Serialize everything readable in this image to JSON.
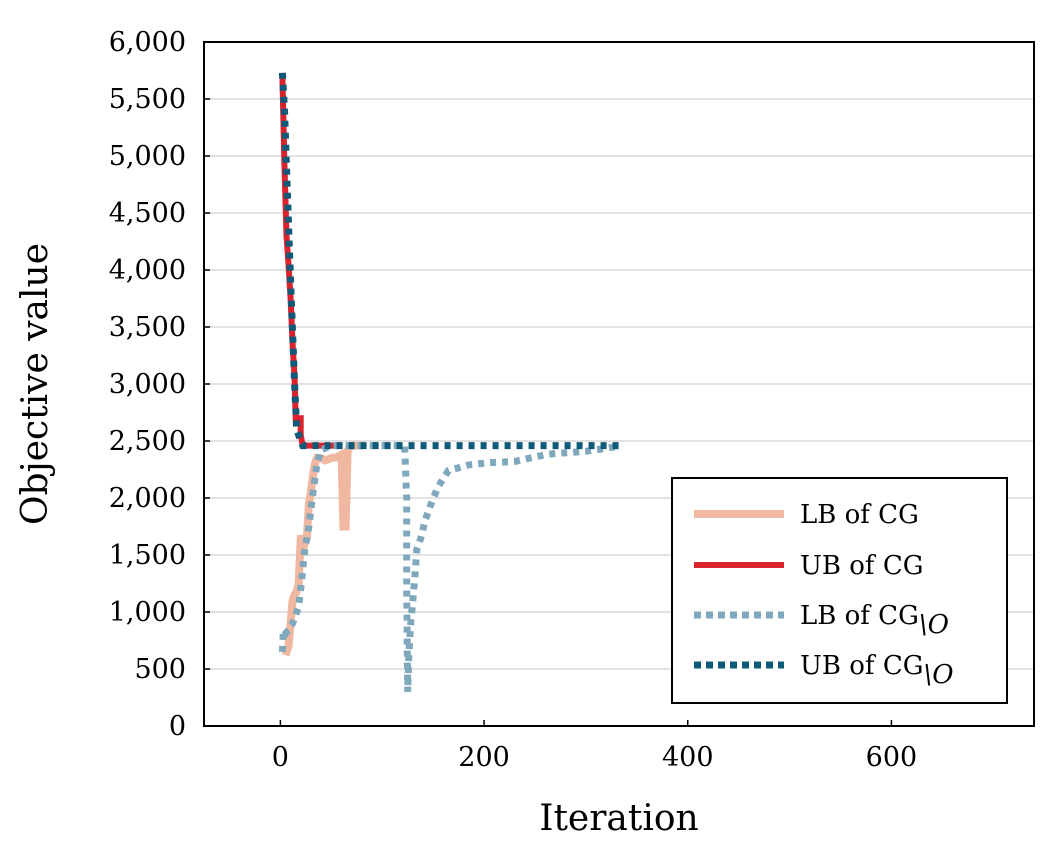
{
  "chart_data": {
    "type": "line",
    "xlabel": "Iteration",
    "ylabel": "Objective value",
    "xlim": [
      -75,
      740
    ],
    "ylim": [
      0,
      6000
    ],
    "xticks": [
      0,
      200,
      400,
      600
    ],
    "xtick_labels": [
      "0",
      "200",
      "400",
      "600"
    ],
    "yticks": [
      0,
      500,
      1000,
      1500,
      2000,
      2500,
      3000,
      3500,
      4000,
      4500,
      5000,
      5500,
      6000
    ],
    "ytick_labels": [
      "0",
      "500",
      "1,000",
      "1,500",
      "2,000",
      "2,500",
      "3,000",
      "3,500",
      "4,000",
      "4,500",
      "5,000",
      "5,500",
      "6,000"
    ],
    "grid": "horizontal",
    "legend_position": "bottom-right",
    "series": [
      {
        "name": "LB of CG",
        "legend_label": "LB of CG",
        "color": "#f0b8a0",
        "style": "solid-thick",
        "points": [
          [
            5,
            620
          ],
          [
            8,
            700
          ],
          [
            10,
            900
          ],
          [
            12,
            1100
          ],
          [
            14,
            1150
          ],
          [
            16,
            1180
          ],
          [
            18,
            1250
          ],
          [
            20,
            1640
          ],
          [
            22,
            1640
          ],
          [
            24,
            1600
          ],
          [
            26,
            1650
          ],
          [
            28,
            1950
          ],
          [
            30,
            2050
          ],
          [
            32,
            2200
          ],
          [
            34,
            2300
          ],
          [
            36,
            2350
          ],
          [
            40,
            2350
          ],
          [
            44,
            2330
          ],
          [
            50,
            2350
          ],
          [
            56,
            2360
          ],
          [
            60,
            2380
          ],
          [
            62,
            1750
          ],
          [
            64,
            1750
          ],
          [
            66,
            2400
          ],
          [
            68,
            2450
          ],
          [
            70,
            2460
          ],
          [
            80,
            2460
          ]
        ]
      },
      {
        "name": "UB of CG",
        "legend_label": "UB of CG",
        "color": "#d9232d",
        "style": "solid",
        "points": [
          [
            2,
            5700
          ],
          [
            4,
            4900
          ],
          [
            6,
            4300
          ],
          [
            8,
            4050
          ],
          [
            10,
            3750
          ],
          [
            12,
            3350
          ],
          [
            14,
            3050
          ],
          [
            15,
            2700
          ],
          [
            20,
            2700
          ],
          [
            20,
            2550
          ],
          [
            22,
            2460
          ],
          [
            60,
            2460
          ]
        ]
      },
      {
        "name": "LB of CG without O",
        "legend_label": "LB of CG",
        "legend_subscript": "\\O",
        "color": "#7fa8bd",
        "style": "dotted",
        "points": [
          [
            2,
            650
          ],
          [
            3,
            850
          ],
          [
            6,
            820
          ],
          [
            12,
            900
          ],
          [
            16,
            1000
          ],
          [
            18,
            1050
          ],
          [
            20,
            1200
          ],
          [
            24,
            1550
          ],
          [
            28,
            1750
          ],
          [
            30,
            1900
          ],
          [
            32,
            2050
          ],
          [
            36,
            2300
          ],
          [
            40,
            2420
          ],
          [
            50,
            2460
          ],
          [
            60,
            2460
          ],
          [
            90,
            2460
          ],
          [
            110,
            2460
          ],
          [
            122,
            2460
          ],
          [
            124,
            2000
          ],
          [
            124,
            1200
          ],
          [
            125,
            300
          ],
          [
            126,
            600
          ],
          [
            128,
            900
          ],
          [
            130,
            1100
          ],
          [
            132,
            1300
          ],
          [
            134,
            1550
          ],
          [
            138,
            1650
          ],
          [
            142,
            1800
          ],
          [
            148,
            1950
          ],
          [
            155,
            2100
          ],
          [
            165,
            2240
          ],
          [
            185,
            2290
          ],
          [
            205,
            2310
          ],
          [
            230,
            2320
          ],
          [
            260,
            2380
          ],
          [
            270,
            2390
          ],
          [
            300,
            2410
          ],
          [
            330,
            2450
          ]
        ]
      },
      {
        "name": "UB of CG without O",
        "legend_label": "UB of CG",
        "legend_subscript": "\\O",
        "color": "#0f5a78",
        "style": "dotted",
        "points": [
          [
            2,
            5730
          ],
          [
            4,
            5400
          ],
          [
            6,
            4900
          ],
          [
            8,
            4400
          ],
          [
            10,
            3900
          ],
          [
            12,
            3450
          ],
          [
            14,
            3000
          ],
          [
            16,
            2600
          ],
          [
            18,
            2550
          ],
          [
            22,
            2460
          ],
          [
            335,
            2460
          ]
        ]
      }
    ]
  }
}
